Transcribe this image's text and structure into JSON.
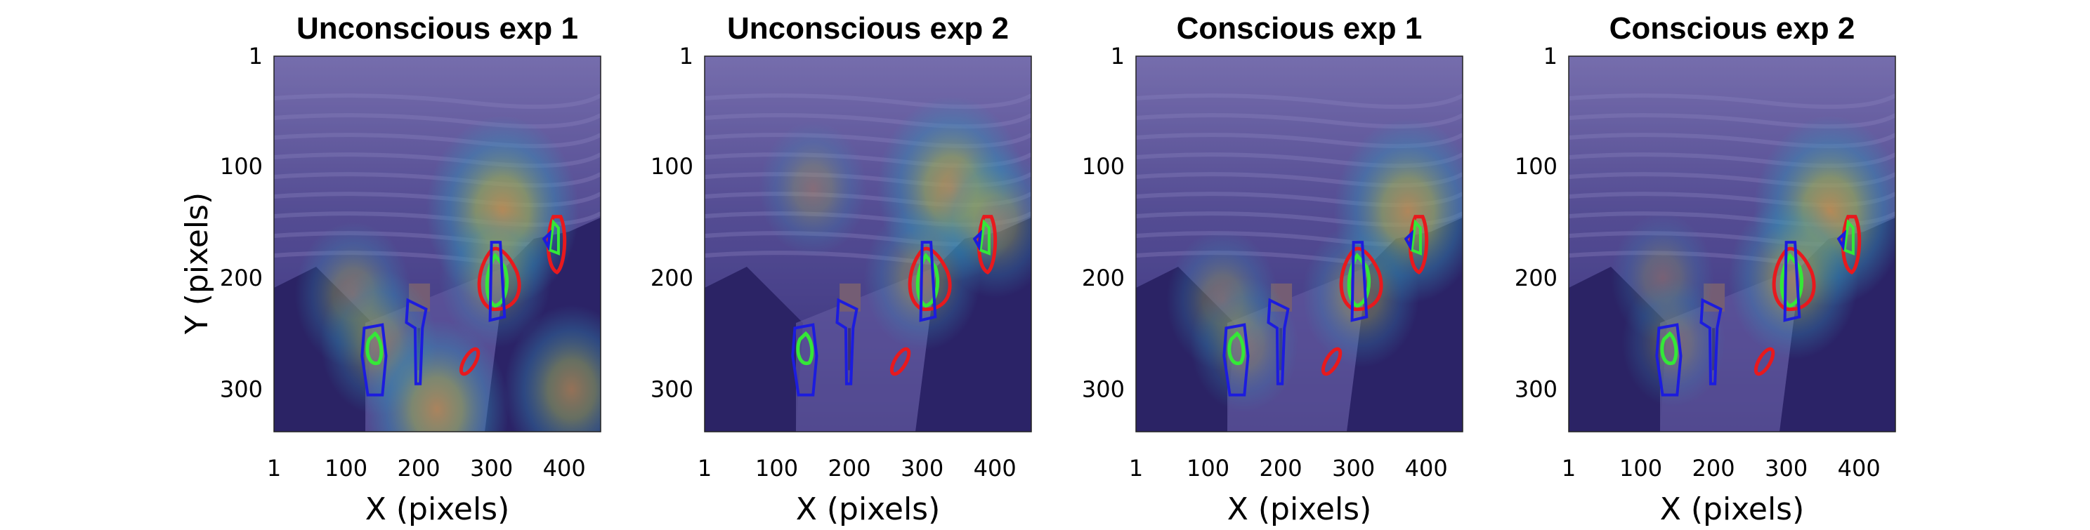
{
  "figure": {
    "ylabel": "Y (pixels)",
    "xlabel": "X (pixels)"
  },
  "colors": {
    "overlay": "#3d2f8f",
    "heat_low": "#2fb8c6",
    "heat_mid": "#b6d94a",
    "heat_high": "#f2b63a",
    "contour_red": "#e8191d",
    "contour_green": "#34e838",
    "contour_blue": "#1c1cde"
  },
  "chart_data": [
    {
      "type": "heatmap",
      "title": "Unconscious exp 1",
      "xlabel": "X (pixels)",
      "ylabel": "Y (pixels)",
      "xlim": [
        1,
        450
      ],
      "ylim": [
        1,
        338
      ],
      "y_reversed": true,
      "xticks": [
        "1",
        "100",
        "200",
        "300",
        "400"
      ],
      "yticks": [
        "1",
        "100",
        "200",
        "300"
      ],
      "hotspots": [
        {
          "x": 315,
          "y": 140,
          "level": 0.95
        },
        {
          "x": 110,
          "y": 215,
          "level": 0.55
        },
        {
          "x": 145,
          "y": 258,
          "level": 0.55
        },
        {
          "x": 225,
          "y": 318,
          "level": 0.85
        },
        {
          "x": 410,
          "y": 300,
          "level": 0.75
        },
        {
          "x": 305,
          "y": 200,
          "level": 0.5
        }
      ]
    },
    {
      "type": "heatmap",
      "title": "Unconscious exp 2",
      "xlabel": "X (pixels)",
      "xlim": [
        1,
        450
      ],
      "ylim": [
        1,
        338
      ],
      "y_reversed": true,
      "xticks": [
        "1",
        "100",
        "200",
        "300",
        "400"
      ],
      "yticks": [
        "1",
        "100",
        "200",
        "300"
      ],
      "hotspots": [
        {
          "x": 340,
          "y": 120,
          "level": 0.9
        },
        {
          "x": 150,
          "y": 120,
          "level": 0.45
        },
        {
          "x": 400,
          "y": 150,
          "level": 0.6
        },
        {
          "x": 300,
          "y": 200,
          "level": 0.55
        }
      ]
    },
    {
      "type": "heatmap",
      "title": "Conscious exp 1",
      "xlabel": "X (pixels)",
      "xlim": [
        1,
        450
      ],
      "ylim": [
        1,
        338
      ],
      "y_reversed": true,
      "xticks": [
        "1",
        "100",
        "200",
        "300",
        "400"
      ],
      "yticks": [
        "1",
        "100",
        "200",
        "300"
      ],
      "hotspots": [
        {
          "x": 375,
          "y": 140,
          "level": 0.9
        },
        {
          "x": 120,
          "y": 220,
          "level": 0.5
        },
        {
          "x": 310,
          "y": 215,
          "level": 0.55
        },
        {
          "x": 150,
          "y": 260,
          "level": 0.45
        }
      ]
    },
    {
      "type": "heatmap",
      "title": "Conscious exp 2",
      "xlabel": "X (pixels)",
      "xlim": [
        1,
        450
      ],
      "ylim": [
        1,
        338
      ],
      "y_reversed": true,
      "xticks": [
        "1",
        "100",
        "200",
        "300",
        "400"
      ],
      "yticks": [
        "1",
        "100",
        "200",
        "300"
      ],
      "hotspots": [
        {
          "x": 360,
          "y": 140,
          "level": 0.95
        },
        {
          "x": 310,
          "y": 200,
          "level": 0.7
        },
        {
          "x": 130,
          "y": 200,
          "level": 0.4
        },
        {
          "x": 145,
          "y": 258,
          "level": 0.4
        }
      ]
    }
  ]
}
